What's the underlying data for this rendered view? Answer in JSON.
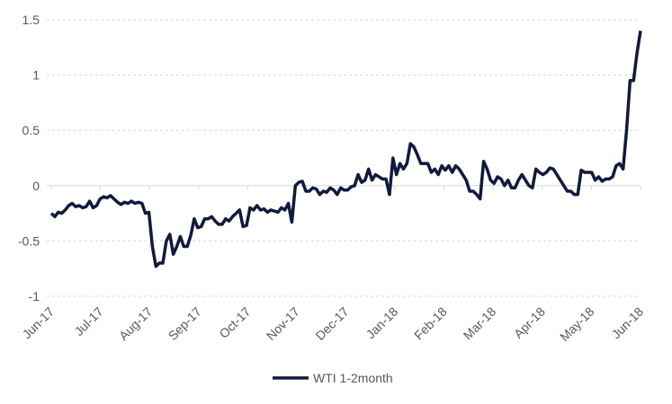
{
  "chart_data": {
    "type": "line",
    "xticks": [
      "Jun-17",
      "Jul-17",
      "Aug-17",
      "Sep-17",
      "Oct-17",
      "Nov-17",
      "Dec-17",
      "Jan-18",
      "Feb-18",
      "Mar-18",
      "Apr-18",
      "May-18",
      "Jun-18"
    ],
    "series": [
      {
        "name": "WTI 1-2month",
        "color": "#111a3d",
        "values": [
          -0.25,
          -0.28,
          -0.24,
          -0.25,
          -0.22,
          -0.18,
          -0.16,
          -0.19,
          -0.18,
          -0.2,
          -0.19,
          -0.14,
          -0.2,
          -0.18,
          -0.12,
          -0.1,
          -0.11,
          -0.09,
          -0.12,
          -0.15,
          -0.17,
          -0.15,
          -0.16,
          -0.14,
          -0.16,
          -0.15,
          -0.16,
          -0.25,
          -0.24,
          -0.55,
          -0.73,
          -0.7,
          -0.7,
          -0.5,
          -0.44,
          -0.62,
          -0.55,
          -0.46,
          -0.55,
          -0.55,
          -0.45,
          -0.3,
          -0.38,
          -0.37,
          -0.3,
          -0.3,
          -0.28,
          -0.32,
          -0.35,
          -0.35,
          -0.3,
          -0.32,
          -0.28,
          -0.25,
          -0.22,
          -0.37,
          -0.36,
          -0.2,
          -0.22,
          -0.18,
          -0.22,
          -0.21,
          -0.24,
          -0.22,
          -0.23,
          -0.24,
          -0.2,
          -0.22,
          -0.16,
          -0.33,
          0.0,
          0.03,
          0.04,
          -0.05,
          -0.05,
          -0.02,
          -0.03,
          -0.08,
          -0.05,
          -0.06,
          -0.02,
          -0.04,
          -0.08,
          -0.02,
          -0.04,
          -0.04,
          -0.01,
          0.0,
          0.1,
          0.03,
          0.05,
          0.15,
          0.05,
          0.1,
          0.08,
          0.06,
          0.06,
          -0.08,
          0.25,
          0.1,
          0.2,
          0.15,
          0.2,
          0.38,
          0.35,
          0.28,
          0.2,
          0.2,
          0.2,
          0.12,
          0.15,
          0.1,
          0.18,
          0.14,
          0.18,
          0.12,
          0.18,
          0.15,
          0.1,
          0.05,
          -0.05,
          -0.05,
          -0.08,
          -0.12,
          0.22,
          0.15,
          0.05,
          0.02,
          0.08,
          0.06,
          0.0,
          0.05,
          -0.02,
          -0.02,
          0.05,
          0.1,
          0.05,
          0.0,
          -0.02,
          0.15,
          0.12,
          0.1,
          0.12,
          0.16,
          0.15,
          0.1,
          0.05,
          0.0,
          -0.05,
          -0.05,
          -0.08,
          -0.08,
          0.14,
          0.12,
          0.12,
          0.12,
          0.05,
          0.08,
          0.04,
          0.06,
          0.06,
          0.08,
          0.18,
          0.2,
          0.15,
          0.5,
          0.95,
          0.95,
          1.2,
          1.4
        ]
      }
    ],
    "ylim": [
      -1,
      1.5
    ],
    "yticks": [
      -1,
      -0.5,
      0,
      0.5,
      1,
      1.5
    ],
    "grid": true,
    "legend": "bottom"
  }
}
